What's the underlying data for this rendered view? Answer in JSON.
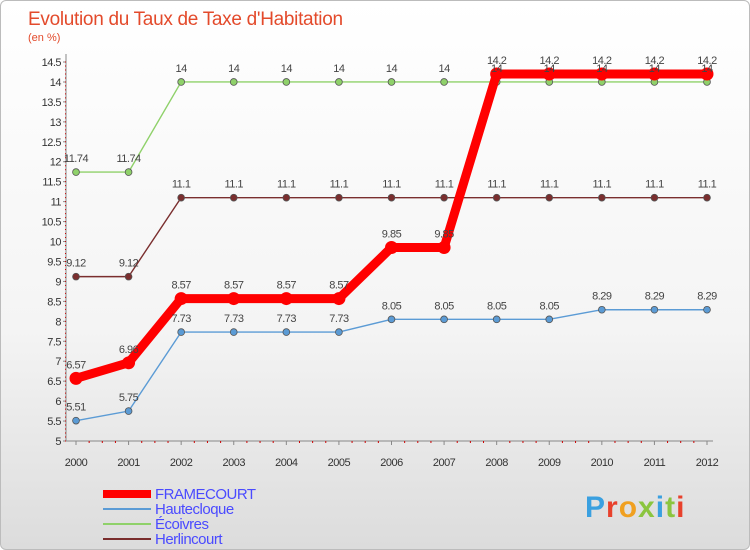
{
  "chart_data": {
    "type": "line",
    "title": "Evolution du Taux de Taxe d'Habitation",
    "subtitle": "(en %)",
    "x": [
      "2000",
      "2001",
      "2002",
      "2003",
      "2004",
      "2005",
      "2006",
      "2007",
      "2008",
      "2009",
      "2010",
      "2011",
      "2012"
    ],
    "ylim": [
      5,
      14.5
    ],
    "yticks": [
      "5",
      "5.5",
      "6",
      "6.5",
      "7",
      "7.5",
      "8",
      "8.5",
      "9",
      "9.5",
      "10",
      "10.5",
      "11",
      "11.5",
      "12",
      "12.5",
      "13",
      "13.5",
      "14",
      "14.5"
    ],
    "grid": false,
    "legend_position": "bottom-left",
    "series": [
      {
        "name": "Hautecloque",
        "color": "#5b9bd5",
        "values": [
          5.51,
          5.75,
          7.73,
          7.73,
          7.73,
          7.73,
          8.05,
          8.05,
          8.05,
          8.05,
          8.29,
          8.29,
          8.29
        ]
      },
      {
        "name": "Écoivres",
        "color": "#8fd16a",
        "values": [
          11.74,
          11.74,
          14,
          14,
          14,
          14,
          14,
          14,
          14,
          14,
          14,
          14,
          14
        ]
      },
      {
        "name": "Herlincourt",
        "color": "#7a2e2e",
        "values": [
          9.12,
          9.12,
          11.1,
          11.1,
          11.1,
          11.1,
          11.1,
          11.1,
          11.1,
          11.1,
          11.1,
          11.1,
          11.1
        ]
      },
      {
        "name": "FRAMECOURT",
        "color": "#ff0000",
        "values": [
          6.57,
          6.96,
          8.57,
          8.57,
          8.57,
          8.57,
          9.85,
          9.85,
          14.2,
          14.2,
          14.2,
          14.2,
          14.2
        ]
      }
    ]
  },
  "logo": {
    "text": "Proxiti"
  }
}
